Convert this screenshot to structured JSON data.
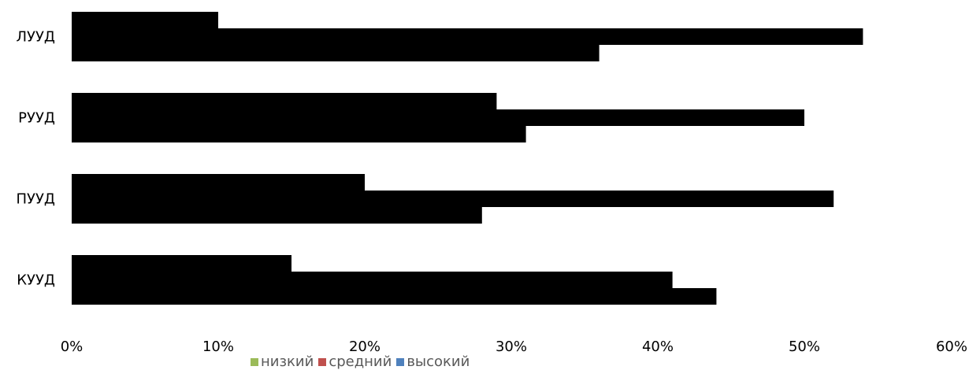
{
  "chart_data": {
    "type": "bar",
    "orientation": "horizontal",
    "categories": [
      "ЛУУД",
      "РУУД",
      "ПУУД",
      "КУУД"
    ],
    "series": [
      {
        "name": "низкий",
        "color": "#9BBB59",
        "values": [
          10,
          29,
          20,
          15
        ]
      },
      {
        "name": "средний",
        "color": "#C0504D",
        "values": [
          54,
          50,
          52,
          41
        ]
      },
      {
        "name": "высокий",
        "color": "#4F81BD",
        "values": [
          36,
          31,
          28,
          44
        ]
      }
    ],
    "xlim": [
      0,
      60
    ],
    "xticks": [
      "0%",
      "10%",
      "20%",
      "30%",
      "40%",
      "50%",
      "60%"
    ],
    "bar_fill": "#000000",
    "legend_position": "bottom",
    "grid": false
  }
}
